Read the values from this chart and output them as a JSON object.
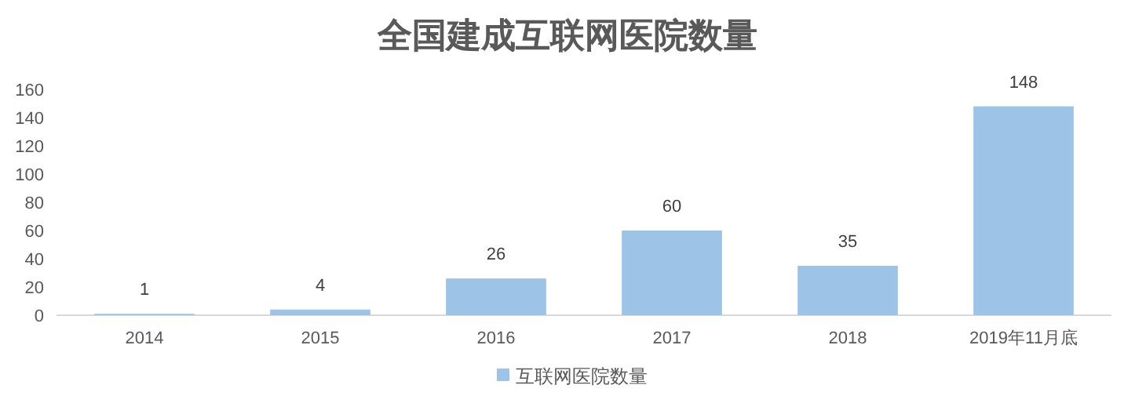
{
  "chart_data": {
    "type": "bar",
    "title": "全国建成互联网医院数量",
    "categories": [
      "2014",
      "2015",
      "2016",
      "2017",
      "2018",
      "2019年11月底"
    ],
    "series": [
      {
        "name": "互联网医院数量",
        "color": "#9dc3e6",
        "values": [
          1,
          4,
          26,
          60,
          35,
          148
        ]
      }
    ],
    "ylim": [
      0,
      160
    ],
    "yticks": [
      0,
      20,
      40,
      60,
      80,
      100,
      120,
      140,
      160
    ],
    "data_labels": true,
    "legend": "bottom"
  }
}
